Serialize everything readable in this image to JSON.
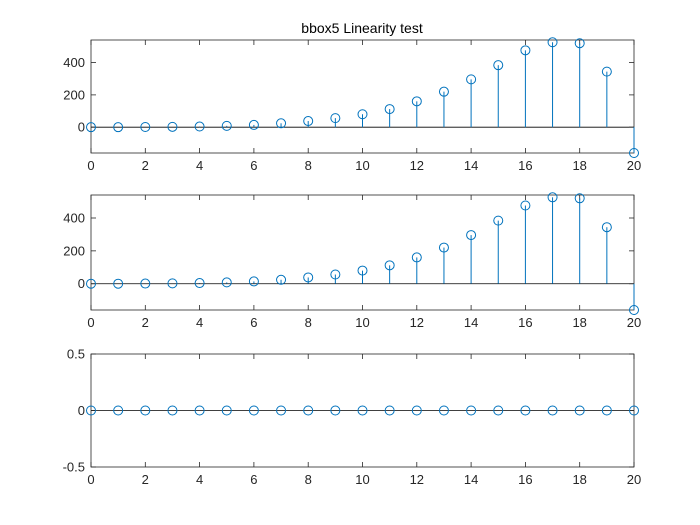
{
  "figure": {
    "title": "bbox5 Linearity test"
  },
  "colors": {
    "series": "#0072BD",
    "axes": "#262626",
    "background": "#ffffff"
  },
  "chart_data": [
    {
      "type": "stem",
      "title": "bbox5 Linearity test",
      "xlabel": "",
      "ylabel": "",
      "xlim": [
        0,
        20
      ],
      "ylim": [
        -160,
        540
      ],
      "xticks": [
        0,
        2,
        4,
        6,
        8,
        10,
        12,
        14,
        16,
        18,
        20
      ],
      "yticks": [
        0,
        200,
        400
      ],
      "grid": false,
      "x": [
        0,
        1,
        2,
        3,
        4,
        5,
        6,
        7,
        8,
        9,
        10,
        11,
        12,
        13,
        14,
        15,
        16,
        17,
        18,
        19,
        20
      ],
      "values": [
        0,
        0,
        1,
        2,
        4,
        8,
        14,
        24,
        38,
        56,
        80,
        112,
        160,
        220,
        296,
        384,
        476,
        526,
        520,
        344,
        -160
      ]
    },
    {
      "type": "stem",
      "title": "",
      "xlabel": "",
      "ylabel": "",
      "xlim": [
        0,
        20
      ],
      "ylim": [
        -160,
        540
      ],
      "xticks": [
        0,
        2,
        4,
        6,
        8,
        10,
        12,
        14,
        16,
        18,
        20
      ],
      "yticks": [
        0,
        200,
        400
      ],
      "grid": false,
      "x": [
        0,
        1,
        2,
        3,
        4,
        5,
        6,
        7,
        8,
        9,
        10,
        11,
        12,
        13,
        14,
        15,
        16,
        17,
        18,
        19,
        20
      ],
      "values": [
        0,
        0,
        1,
        2,
        4,
        8,
        14,
        24,
        38,
        56,
        80,
        112,
        160,
        220,
        296,
        384,
        476,
        526,
        520,
        344,
        -160
      ]
    },
    {
      "type": "stem",
      "title": "",
      "xlabel": "",
      "ylabel": "",
      "xlim": [
        0,
        20
      ],
      "ylim": [
        -0.5,
        0.5
      ],
      "xticks": [
        0,
        2,
        4,
        6,
        8,
        10,
        12,
        14,
        16,
        18,
        20
      ],
      "yticks": [
        -0.5,
        0,
        0.5
      ],
      "grid": false,
      "x": [
        0,
        1,
        2,
        3,
        4,
        5,
        6,
        7,
        8,
        9,
        10,
        11,
        12,
        13,
        14,
        15,
        16,
        17,
        18,
        19,
        20
      ],
      "values": [
        0,
        0,
        0,
        0,
        0,
        0,
        0,
        0,
        0,
        0,
        0,
        0,
        0,
        0,
        0,
        0,
        0,
        0,
        0,
        0,
        0
      ]
    }
  ]
}
